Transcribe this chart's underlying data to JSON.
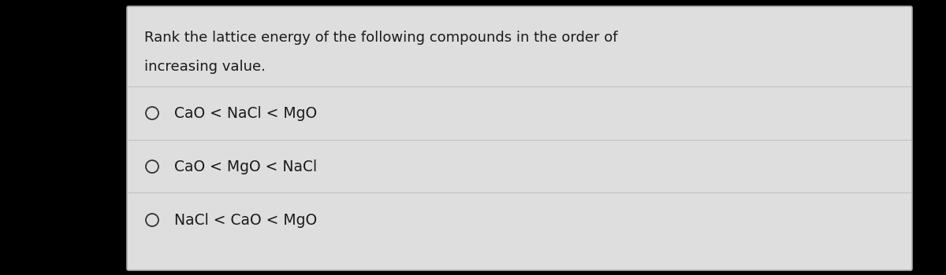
{
  "outer_bg": "#000000",
  "card_bg": "#e8e8e8",
  "card_inner_bg": "#e0e0e0",
  "text_color": "#1a1a1a",
  "divider_color": "#c0c0c0",
  "question_line1": "Rank the lattice energy of the following compounds in the order of",
  "question_line2": "increasing value.",
  "options": [
    "CaO < NaCl < MgO",
    "CaO < MgO < NaCl",
    "NaCl < CaO < MgO"
  ],
  "question_fontsize": 13.0,
  "option_fontsize": 13.5,
  "circle_color": "#333333"
}
